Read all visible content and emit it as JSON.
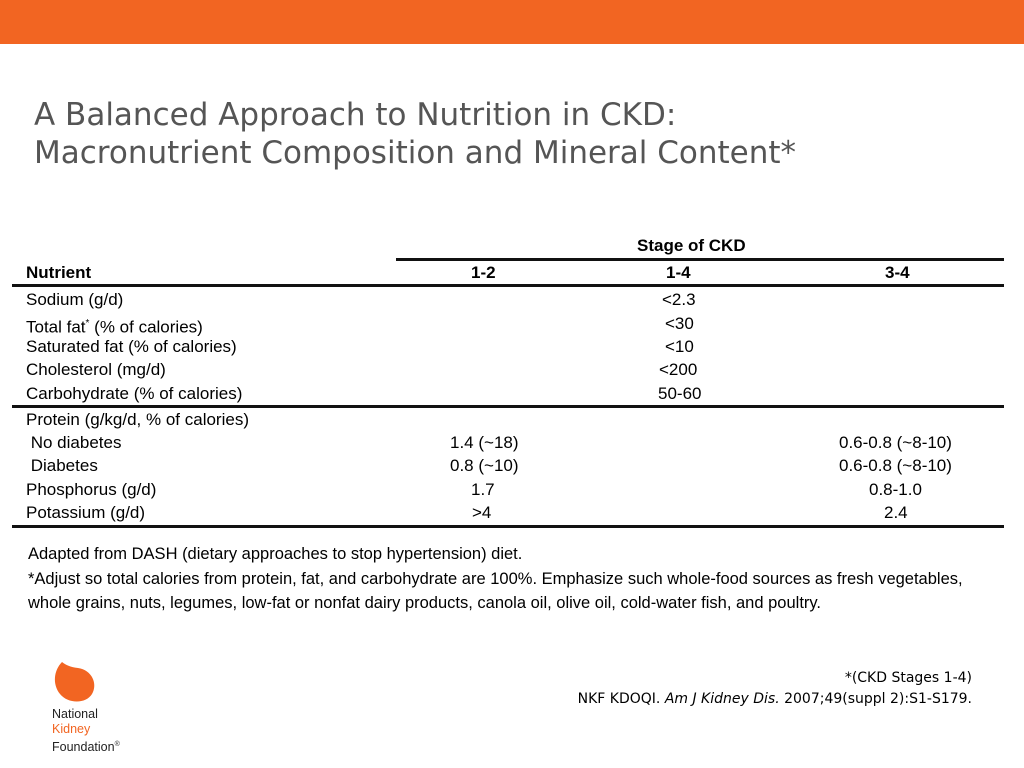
{
  "header_bar": {
    "color": "#f26522"
  },
  "title": {
    "line1": "A Balanced Approach to Nutrition in CKD:",
    "line2": "Macronutrient Composition and Mineral Content*"
  },
  "table": {
    "group_header": "Stage of CKD",
    "columns": [
      "Nutrient",
      "1-2",
      "1-4",
      "3-4"
    ],
    "section1": [
      {
        "nutrient": "Sodium (g/d)",
        "v14": "<2.3"
      },
      {
        "nutrient": "Total fat",
        "sup": "*",
        "nutrient_suffix": " (% of calories)",
        "v14": "<30"
      },
      {
        "nutrient": "Saturated fat (% of calories)",
        "v14": "<10"
      },
      {
        "nutrient": "Cholesterol (mg/d)",
        "v14": "<200"
      },
      {
        "nutrient": "Carbohydrate (% of calories)",
        "v14": "50-60"
      }
    ],
    "section2_header": "Protein (g/kg/d, % of calories)",
    "section2": [
      {
        "nutrient": " No diabetes",
        "v12": "1.4 (~18)",
        "v34": "0.6-0.8 (~8-10)"
      },
      {
        "nutrient": " Diabetes",
        "v12": "0.8 (~10)",
        "v34": "0.6-0.8 (~8-10)"
      },
      {
        "nutrient": "Phosphorus (g/d)",
        "v12": "1.7",
        "v34": "0.8-1.0"
      },
      {
        "nutrient": "Potassium (g/d)",
        "v12": ">4",
        "v34": "2.4"
      }
    ]
  },
  "notes": {
    "line1": "Adapted from DASH (dietary approaches to stop hypertension) diet.",
    "line2": "*Adjust so total calories from protein, fat, and carbohydrate are 100%. Emphasize such whole-food sources as fresh vegetables, whole grains, nuts, legumes, low-fat or nonfat dairy products, canola oil, olive oil, cold-water fish, and poultry."
  },
  "citation": {
    "stages": "*(CKD Stages 1-4)",
    "prefix": "NKF KDOQI. ",
    "journal": "Am J Kidney Dis.",
    "suffix": " 2007;49(suppl 2):S1-S179."
  },
  "logo": {
    "line1": "National",
    "line2": "Kidney",
    "line3": "Foundation",
    "mark": "®",
    "color": "#f26522"
  }
}
